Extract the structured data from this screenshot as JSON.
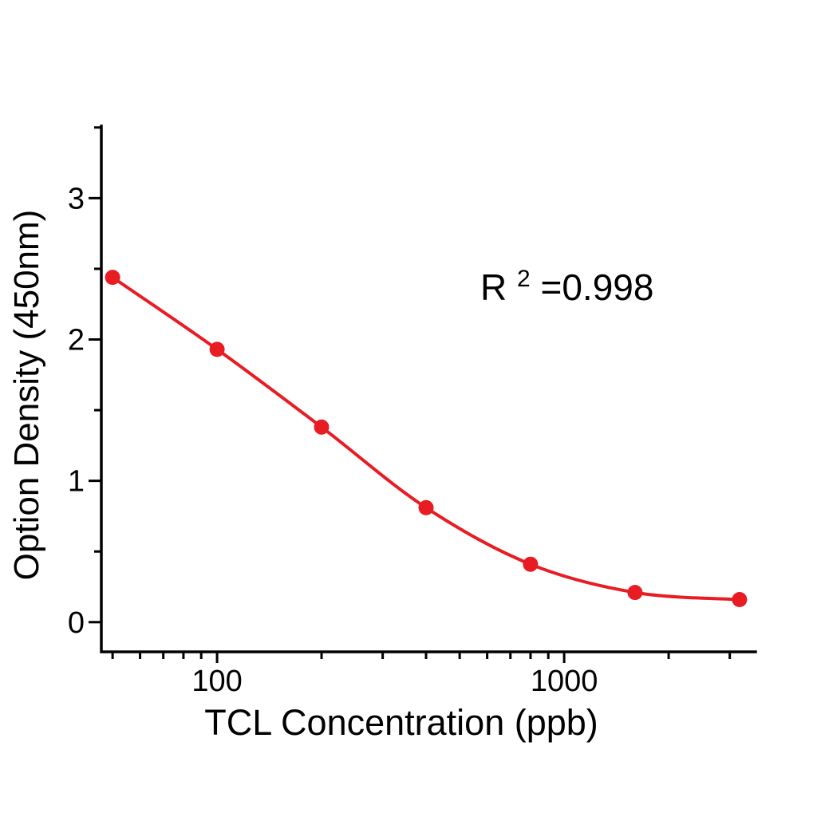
{
  "figure": {
    "background": "#ffffff",
    "annotation": {
      "base": "R",
      "sup": "2",
      "rest": "=0.998"
    }
  },
  "chart_data": {
    "type": "scatter",
    "title": "",
    "xlabel": "TCL Concentration (ppb)",
    "ylabel": "Option Density (450nm)",
    "x_scale": "log10",
    "x": [
      50,
      100,
      200,
      400,
      800,
      1600,
      3200
    ],
    "y": [
      2.44,
      1.93,
      1.38,
      0.81,
      0.41,
      0.21,
      0.16
    ],
    "xlim": [
      46.4,
      3560
    ],
    "ylim": [
      -0.21,
      3.51
    ],
    "x_major_ticks": [
      100,
      1000
    ],
    "x_major_tick_labels": [
      "100",
      "1000"
    ],
    "x_minor_ticks": [
      50,
      60,
      70,
      80,
      90,
      200,
      300,
      400,
      500,
      600,
      700,
      800,
      900,
      2000,
      3000
    ],
    "y_major_ticks": [
      0,
      1,
      2,
      3
    ],
    "y_major_tick_labels": [
      "0",
      "1",
      "2",
      "3"
    ],
    "y_minor_ticks": [
      0.5,
      1.5,
      2.5,
      3.5
    ],
    "grid": false,
    "legend": "none",
    "line_color": "#e81c23",
    "marker_color": "#e81c23",
    "axis_color": "#000000",
    "r_squared": "R2=0.998"
  }
}
